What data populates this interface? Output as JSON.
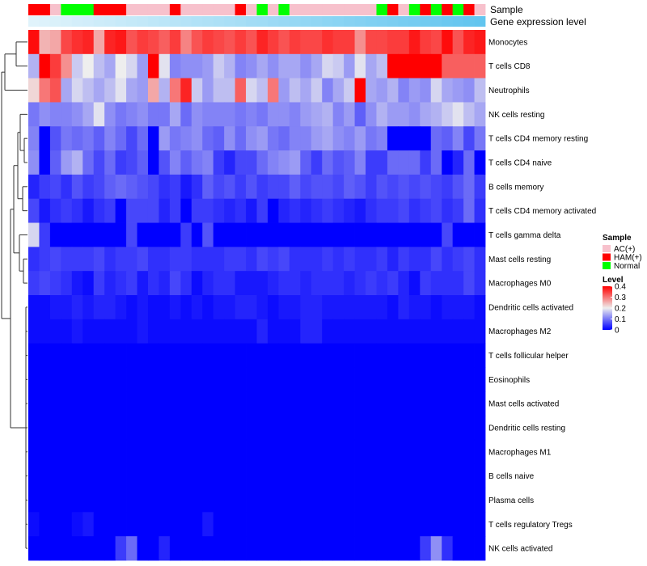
{
  "chart_data": {
    "type": "heatmap",
    "title": "",
    "annotations": {
      "sample_label": "Sample",
      "gene_label": "Gene expression level",
      "sample_groups": [
        "HAM(+)",
        "HAM(+)",
        "AC(+)",
        "Normal",
        "Normal",
        "Normal",
        "HAM(+)",
        "HAM(+)",
        "HAM(+)",
        "AC(+)",
        "AC(+)",
        "AC(+)",
        "AC(+)",
        "HAM(+)",
        "AC(+)",
        "AC(+)",
        "AC(+)",
        "AC(+)",
        "AC(+)",
        "HAM(+)",
        "AC(+)",
        "Normal",
        "AC(+)",
        "Normal",
        "AC(+)",
        "AC(+)",
        "AC(+)",
        "AC(+)",
        "AC(+)",
        "AC(+)",
        "AC(+)",
        "AC(+)",
        "Normal",
        "HAM(+)",
        "AC(+)",
        "Normal",
        "HAM(+)",
        "Normal",
        "HAM(+)",
        "Normal",
        "HAM(+)",
        "AC(+)"
      ],
      "gene_expression_level": [
        0.0,
        0.02,
        0.05,
        0.07,
        0.1,
        0.12,
        0.15,
        0.17,
        0.2,
        0.22,
        0.24,
        0.27,
        0.29,
        0.32,
        0.34,
        0.37,
        0.39,
        0.41,
        0.44,
        0.46,
        0.49,
        0.51,
        0.54,
        0.56,
        0.59,
        0.61,
        0.63,
        0.66,
        0.68,
        0.71,
        0.73,
        0.76,
        0.78,
        0.8,
        0.83,
        0.85,
        0.88,
        0.9,
        0.93,
        0.95,
        0.98,
        1.0
      ]
    },
    "rows": [
      {
        "name": "Monocytes",
        "values": [
          0.39,
          0.25,
          0.26,
          0.34,
          0.36,
          0.37,
          0.26,
          0.37,
          0.38,
          0.33,
          0.35,
          0.34,
          0.32,
          0.35,
          0.29,
          0.33,
          0.35,
          0.34,
          0.33,
          0.35,
          0.33,
          0.37,
          0.35,
          0.33,
          0.35,
          0.34,
          0.34,
          0.36,
          0.35,
          0.35,
          0.28,
          0.34,
          0.34,
          0.35,
          0.35,
          0.38,
          0.35,
          0.34,
          0.39,
          0.33,
          0.37,
          0.38
        ]
      },
      {
        "name": "T cells CD8",
        "values": [
          0.15,
          0.4,
          0.35,
          0.28,
          0.17,
          0.2,
          0.16,
          0.14,
          0.2,
          0.18,
          0.13,
          0.4,
          0.19,
          0.11,
          0.12,
          0.12,
          0.13,
          0.17,
          0.15,
          0.11,
          0.12,
          0.14,
          0.12,
          0.14,
          0.14,
          0.12,
          0.14,
          0.18,
          0.17,
          0.13,
          0.19,
          0.14,
          0.16,
          0.4,
          0.4,
          0.4,
          0.4,
          0.4,
          0.32,
          0.32,
          0.32,
          0.32
        ]
      },
      {
        "name": "Neutrophils",
        "values": [
          0.22,
          0.3,
          0.33,
          0.14,
          0.18,
          0.16,
          0.14,
          0.16,
          0.19,
          0.14,
          0.13,
          0.26,
          0.15,
          0.3,
          0.37,
          0.17,
          0.13,
          0.16,
          0.16,
          0.32,
          0.18,
          0.16,
          0.3,
          0.13,
          0.16,
          0.14,
          0.17,
          0.11,
          0.14,
          0.17,
          0.4,
          0.14,
          0.13,
          0.15,
          0.11,
          0.13,
          0.12,
          0.18,
          0.14,
          0.13,
          0.12,
          0.16
        ]
      },
      {
        "name": "NK cells resting",
        "values": [
          0.1,
          0.12,
          0.11,
          0.11,
          0.12,
          0.14,
          0.19,
          0.12,
          0.1,
          0.11,
          0.12,
          0.1,
          0.1,
          0.14,
          0.09,
          0.12,
          0.11,
          0.11,
          0.11,
          0.1,
          0.11,
          0.1,
          0.12,
          0.12,
          0.11,
          0.13,
          0.14,
          0.15,
          0.11,
          0.13,
          0.08,
          0.12,
          0.15,
          0.13,
          0.13,
          0.12,
          0.14,
          0.15,
          0.17,
          0.19,
          0.16,
          0.14
        ]
      },
      {
        "name": "T cells CD4 memory resting",
        "values": [
          0.11,
          0.0,
          0.07,
          0.1,
          0.09,
          0.1,
          0.08,
          0.11,
          0.09,
          0.06,
          0.09,
          0.0,
          0.13,
          0.1,
          0.11,
          0.12,
          0.09,
          0.08,
          0.12,
          0.09,
          0.12,
          0.13,
          0.1,
          0.09,
          0.11,
          0.11,
          0.13,
          0.14,
          0.12,
          0.11,
          0.13,
          0.1,
          0.11,
          0.0,
          0.0,
          0.0,
          0.0,
          0.09,
          0.08,
          0.11,
          0.06,
          0.1
        ]
      },
      {
        "name": "T cells CD4 naive",
        "values": [
          0.12,
          0.0,
          0.08,
          0.13,
          0.15,
          0.09,
          0.06,
          0.09,
          0.05,
          0.06,
          0.08,
          0.0,
          0.07,
          0.11,
          0.08,
          0.1,
          0.11,
          0.05,
          0.03,
          0.06,
          0.06,
          0.09,
          0.11,
          0.12,
          0.13,
          0.08,
          0.05,
          0.09,
          0.07,
          0.08,
          0.11,
          0.05,
          0.05,
          0.09,
          0.09,
          0.09,
          0.05,
          0.09,
          0.0,
          0.03,
          0.09,
          0.0
        ]
      },
      {
        "name": "B cells memory",
        "values": [
          0.03,
          0.05,
          0.06,
          0.04,
          0.07,
          0.05,
          0.06,
          0.08,
          0.09,
          0.08,
          0.07,
          0.06,
          0.04,
          0.05,
          0.02,
          0.04,
          0.08,
          0.06,
          0.07,
          0.05,
          0.07,
          0.05,
          0.06,
          0.06,
          0.08,
          0.06,
          0.07,
          0.07,
          0.06,
          0.08,
          0.07,
          0.05,
          0.07,
          0.06,
          0.07,
          0.06,
          0.07,
          0.06,
          0.05,
          0.07,
          0.09,
          0.05
        ]
      },
      {
        "name": "T cells CD4 memory activated",
        "values": [
          0.06,
          0.02,
          0.04,
          0.05,
          0.04,
          0.02,
          0.04,
          0.05,
          0.0,
          0.06,
          0.06,
          0.06,
          0.03,
          0.05,
          0.0,
          0.05,
          0.05,
          0.04,
          0.03,
          0.04,
          0.02,
          0.05,
          0.0,
          0.03,
          0.04,
          0.03,
          0.04,
          0.05,
          0.04,
          0.03,
          0.02,
          0.04,
          0.05,
          0.05,
          0.06,
          0.04,
          0.05,
          0.06,
          0.04,
          0.05,
          0.09,
          0.04
        ]
      },
      {
        "name": "T cells gamma delta",
        "values": [
          0.18,
          0.05,
          0.0,
          0.0,
          0.0,
          0.0,
          0.0,
          0.0,
          0.0,
          0.06,
          0.0,
          0.0,
          0.0,
          0.0,
          0.05,
          0.0,
          0.07,
          0.0,
          0.0,
          0.0,
          0.0,
          0.0,
          0.0,
          0.0,
          0.0,
          0.0,
          0.0,
          0.0,
          0.0,
          0.0,
          0.0,
          0.0,
          0.0,
          0.0,
          0.0,
          0.0,
          0.0,
          0.0,
          0.06,
          0.0,
          0.0,
          0.0
        ]
      },
      {
        "name": "Mast cells resting",
        "values": [
          0.04,
          0.05,
          0.06,
          0.05,
          0.05,
          0.05,
          0.06,
          0.04,
          0.05,
          0.05,
          0.06,
          0.04,
          0.04,
          0.05,
          0.05,
          0.04,
          0.04,
          0.04,
          0.05,
          0.05,
          0.04,
          0.06,
          0.05,
          0.06,
          0.04,
          0.04,
          0.04,
          0.05,
          0.04,
          0.05,
          0.04,
          0.04,
          0.05,
          0.03,
          0.05,
          0.04,
          0.04,
          0.06,
          0.04,
          0.05,
          0.06,
          0.04
        ]
      },
      {
        "name": "Macrophages M0",
        "values": [
          0.05,
          0.06,
          0.05,
          0.04,
          0.02,
          0.01,
          0.05,
          0.03,
          0.04,
          0.05,
          0.02,
          0.04,
          0.03,
          0.06,
          0.04,
          0.01,
          0.03,
          0.04,
          0.04,
          0.02,
          0.02,
          0.02,
          0.03,
          0.04,
          0.04,
          0.03,
          0.04,
          0.04,
          0.04,
          0.03,
          0.04,
          0.05,
          0.04,
          0.05,
          0.03,
          0.01,
          0.05,
          0.04,
          0.04,
          0.04,
          0.06,
          0.04
        ]
      },
      {
        "name": "Dendritic cells activated",
        "values": [
          0.01,
          0.01,
          0.02,
          0.02,
          0.03,
          0.02,
          0.03,
          0.03,
          0.02,
          0.01,
          0.02,
          0.01,
          0.01,
          0.02,
          0.01,
          0.02,
          0.01,
          0.02,
          0.02,
          0.03,
          0.03,
          0.02,
          0.01,
          0.02,
          0.02,
          0.03,
          0.03,
          0.02,
          0.02,
          0.02,
          0.02,
          0.02,
          0.02,
          0.01,
          0.03,
          0.02,
          0.02,
          0.01,
          0.02,
          0.02,
          0.02,
          0.01
        ]
      },
      {
        "name": "Macrophages M2",
        "values": [
          0.01,
          0.01,
          0.01,
          0.01,
          0.02,
          0.01,
          0.01,
          0.01,
          0.01,
          0.01,
          0.02,
          0.01,
          0.01,
          0.01,
          0.01,
          0.01,
          0.01,
          0.01,
          0.01,
          0.01,
          0.01,
          0.03,
          0.01,
          0.01,
          0.01,
          0.03,
          0.03,
          0.01,
          0.01,
          0.01,
          0.01,
          0.01,
          0.01,
          0.01,
          0.01,
          0.01,
          0.01,
          0.01,
          0.01,
          0.01,
          0.01,
          0.01
        ]
      },
      {
        "name": "T cells follicular helper",
        "values": [
          0.0,
          0.0,
          0.0,
          0.0,
          0.0,
          0.0,
          0.0,
          0.0,
          0.0,
          0.0,
          0.0,
          0.0,
          0.0,
          0.0,
          0.0,
          0.0,
          0.0,
          0.0,
          0.0,
          0.0,
          0.0,
          0.0,
          0.0,
          0.0,
          0.0,
          0.0,
          0.0,
          0.0,
          0.0,
          0.0,
          0.0,
          0.0,
          0.0,
          0.0,
          0.0,
          0.0,
          0.0,
          0.0,
          0.0,
          0.0,
          0.0,
          0.0
        ]
      },
      {
        "name": "Eosinophils",
        "values": [
          0.0,
          0.0,
          0.0,
          0.0,
          0.0,
          0.0,
          0.0,
          0.0,
          0.0,
          0.0,
          0.0,
          0.0,
          0.0,
          0.0,
          0.0,
          0.0,
          0.0,
          0.0,
          0.0,
          0.0,
          0.0,
          0.0,
          0.0,
          0.0,
          0.0,
          0.0,
          0.0,
          0.0,
          0.0,
          0.0,
          0.0,
          0.0,
          0.0,
          0.0,
          0.0,
          0.0,
          0.0,
          0.0,
          0.0,
          0.0,
          0.0,
          0.0
        ]
      },
      {
        "name": "Mast cells activated",
        "values": [
          0.0,
          0.0,
          0.0,
          0.0,
          0.0,
          0.0,
          0.0,
          0.0,
          0.0,
          0.0,
          0.0,
          0.0,
          0.0,
          0.0,
          0.0,
          0.0,
          0.0,
          0.0,
          0.0,
          0.0,
          0.0,
          0.0,
          0.0,
          0.0,
          0.0,
          0.0,
          0.0,
          0.0,
          0.0,
          0.0,
          0.0,
          0.0,
          0.0,
          0.0,
          0.0,
          0.0,
          0.0,
          0.0,
          0.0,
          0.0,
          0.0,
          0.0
        ]
      },
      {
        "name": "Dendritic cells resting",
        "values": [
          0.0,
          0.0,
          0.0,
          0.0,
          0.0,
          0.0,
          0.0,
          0.0,
          0.0,
          0.0,
          0.0,
          0.0,
          0.0,
          0.0,
          0.0,
          0.0,
          0.0,
          0.0,
          0.0,
          0.0,
          0.0,
          0.0,
          0.0,
          0.0,
          0.0,
          0.0,
          0.0,
          0.0,
          0.0,
          0.0,
          0.0,
          0.0,
          0.0,
          0.0,
          0.0,
          0.0,
          0.0,
          0.0,
          0.0,
          0.0,
          0.0,
          0.0
        ]
      },
      {
        "name": "Macrophages M1",
        "values": [
          0.0,
          0.0,
          0.0,
          0.0,
          0.0,
          0.0,
          0.0,
          0.0,
          0.0,
          0.0,
          0.0,
          0.0,
          0.0,
          0.0,
          0.0,
          0.0,
          0.0,
          0.0,
          0.0,
          0.0,
          0.0,
          0.0,
          0.0,
          0.0,
          0.0,
          0.0,
          0.0,
          0.0,
          0.0,
          0.0,
          0.0,
          0.0,
          0.0,
          0.0,
          0.0,
          0.0,
          0.0,
          0.0,
          0.0,
          0.0,
          0.0,
          0.0
        ]
      },
      {
        "name": "B cells naive",
        "values": [
          0.0,
          0.0,
          0.0,
          0.0,
          0.0,
          0.0,
          0.0,
          0.0,
          0.0,
          0.0,
          0.0,
          0.0,
          0.0,
          0.0,
          0.0,
          0.0,
          0.0,
          0.0,
          0.0,
          0.0,
          0.0,
          0.0,
          0.0,
          0.0,
          0.0,
          0.0,
          0.0,
          0.0,
          0.0,
          0.0,
          0.0,
          0.0,
          0.0,
          0.0,
          0.0,
          0.0,
          0.0,
          0.0,
          0.0,
          0.0,
          0.0,
          0.0
        ]
      },
      {
        "name": "Plasma cells",
        "values": [
          0.0,
          0.0,
          0.0,
          0.0,
          0.0,
          0.0,
          0.0,
          0.0,
          0.0,
          0.0,
          0.0,
          0.0,
          0.0,
          0.0,
          0.0,
          0.0,
          0.0,
          0.0,
          0.0,
          0.0,
          0.0,
          0.0,
          0.0,
          0.0,
          0.0,
          0.0,
          0.0,
          0.0,
          0.0,
          0.0,
          0.0,
          0.0,
          0.0,
          0.0,
          0.0,
          0.0,
          0.0,
          0.0,
          0.0,
          0.0,
          0.0,
          0.0
        ]
      },
      {
        "name": "T cells regulatory  Tregs",
        "values": [
          0.01,
          0.0,
          0.0,
          0.0,
          0.01,
          0.02,
          0.0,
          0.0,
          0.0,
          0.0,
          0.0,
          0.0,
          0.0,
          0.0,
          0.0,
          0.0,
          0.02,
          0.0,
          0.0,
          0.0,
          0.0,
          0.0,
          0.0,
          0.0,
          0.0,
          0.0,
          0.0,
          0.0,
          0.0,
          0.0,
          0.0,
          0.0,
          0.0,
          0.0,
          0.0,
          0.0,
          0.0,
          0.0,
          0.0,
          0.0,
          0.0,
          0.0
        ]
      },
      {
        "name": "NK cells activated",
        "values": [
          0.0,
          0.0,
          0.0,
          0.0,
          0.0,
          0.0,
          0.0,
          0.0,
          0.05,
          0.09,
          0.0,
          0.0,
          0.03,
          0.0,
          0.0,
          0.0,
          0.0,
          0.0,
          0.0,
          0.0,
          0.0,
          0.0,
          0.0,
          0.0,
          0.0,
          0.0,
          0.0,
          0.0,
          0.0,
          0.0,
          0.0,
          0.0,
          0.0,
          0.0,
          0.0,
          0.0,
          0.05,
          0.12,
          0.04,
          0.0,
          0.0,
          0.0
        ]
      }
    ],
    "legend": {
      "sample_title": "Sample",
      "sample_items": [
        {
          "label": "AC(+)",
          "color": "#f7c1cc"
        },
        {
          "label": "HAM(+)",
          "color": "#ff0000"
        },
        {
          "label": "Normal",
          "color": "#00ff00"
        }
      ],
      "level_title": "Level",
      "level_ticks": [
        0.4,
        0.3,
        0.2,
        0.1,
        0
      ],
      "level_range": [
        0,
        0.4
      ]
    },
    "colors": {
      "low": "#0000ff",
      "mid": "#eeeeee",
      "high": "#ff0000",
      "gene_low": "#e0f3fb",
      "gene_high": "#62c5ef",
      "dendrogram": "#333333"
    }
  }
}
